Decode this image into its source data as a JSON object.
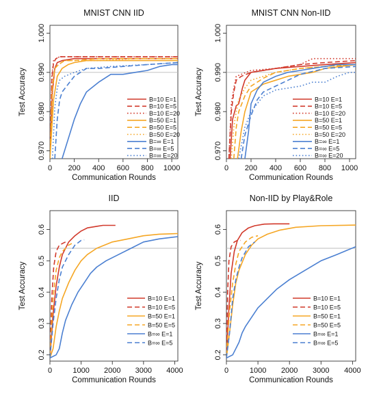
{
  "chart_data": [
    {
      "type": "line",
      "title": "MNIST CNN IID",
      "xlabel": "Communication Rounds",
      "ylabel": "Test Accuracy",
      "xlim": [
        0,
        1050
      ],
      "ylim": [
        0.968,
        1.002
      ],
      "xticks": [
        0,
        200,
        400,
        600,
        800,
        1000
      ],
      "yticks": [
        0.97,
        0.98,
        0.99,
        1.0
      ],
      "ytick_labels": [
        "0.970",
        "0.980",
        "0.990",
        "1.000"
      ],
      "reference_line": 0.99,
      "legend_position": "bottom-right",
      "series": [
        {
          "name": "B=10  E=1",
          "color": "#d1382a",
          "dash": "solid",
          "x": [
            0,
            20,
            40,
            60,
            100,
            200,
            400,
            600,
            800,
            1050
          ],
          "y": [
            0.968,
            0.985,
            0.991,
            0.9925,
            0.993,
            0.9935,
            0.9935,
            0.9935,
            0.9935,
            0.9935
          ]
        },
        {
          "name": "B=10  E=5",
          "color": "#d1382a",
          "dash": "long",
          "x": [
            0,
            15,
            30,
            50,
            80,
            150,
            300,
            600,
            1050
          ],
          "y": [
            0.968,
            0.988,
            0.9925,
            0.9935,
            0.994,
            0.994,
            0.994,
            0.994,
            0.994
          ]
        },
        {
          "name": "B=10  E=20",
          "color": "#d1382a",
          "dash": "dot",
          "x": [
            0,
            15,
            30,
            50,
            80,
            150,
            300,
            600,
            1050
          ],
          "y": [
            0.968,
            0.989,
            0.993,
            0.9935,
            0.994,
            0.994,
            0.994,
            0.994,
            0.994
          ]
        },
        {
          "name": "B=50  E=1",
          "color": "#f5a623",
          "dash": "solid",
          "x": [
            0,
            30,
            60,
            100,
            150,
            200,
            300,
            500,
            800,
            1050
          ],
          "y": [
            0.968,
            0.983,
            0.989,
            0.991,
            0.992,
            0.9925,
            0.993,
            0.993,
            0.993,
            0.993
          ]
        },
        {
          "name": "B=50  E=5",
          "color": "#f5a623",
          "dash": "long",
          "x": [
            0,
            20,
            40,
            70,
            120,
            200,
            400,
            700,
            1050
          ],
          "y": [
            0.968,
            0.986,
            0.991,
            0.992,
            0.993,
            0.993,
            0.9935,
            0.9935,
            0.9935
          ]
        },
        {
          "name": "B=50  E=20",
          "color": "#f5a623",
          "dash": "dot",
          "x": [
            0,
            20,
            40,
            70,
            120,
            200,
            400,
            700,
            1050
          ],
          "y": [
            0.968,
            0.987,
            0.991,
            0.992,
            0.993,
            0.993,
            0.993,
            0.9935,
            0.9935
          ]
        },
        {
          "name": "B=∞  E=1",
          "color": "#4a7fd1",
          "dash": "solid",
          "x": [
            100,
            150,
            200,
            250,
            300,
            400,
            500,
            600,
            700,
            800,
            900,
            1000,
            1050
          ],
          "y": [
            0.968,
            0.973,
            0.978,
            0.982,
            0.985,
            0.9875,
            0.9895,
            0.9895,
            0.99,
            0.9905,
            0.9915,
            0.992,
            0.992
          ]
        },
        {
          "name": "B=∞  E=5",
          "color": "#4a7fd1",
          "dash": "long",
          "x": [
            40,
            60,
            80,
            100,
            150,
            200,
            300,
            400,
            600,
            800,
            1050
          ],
          "y": [
            0.968,
            0.978,
            0.983,
            0.985,
            0.987,
            0.989,
            0.991,
            0.991,
            0.9915,
            0.992,
            0.9925
          ]
        },
        {
          "name": "B=∞  E=20",
          "color": "#4a7fd1",
          "dash": "dot",
          "x": [
            20,
            40,
            60,
            80,
            120,
            200,
            300,
            500,
            800,
            1050
          ],
          "y": [
            0.968,
            0.981,
            0.986,
            0.988,
            0.989,
            0.99,
            0.991,
            0.9915,
            0.992,
            0.9925
          ]
        }
      ]
    },
    {
      "type": "line",
      "title": "MNIST CNN Non-IID",
      "xlabel": "Communication Rounds",
      "ylabel": "Test Accuracy",
      "xlim": [
        0,
        1050
      ],
      "ylim": [
        0.968,
        1.002
      ],
      "xticks": [
        0,
        200,
        400,
        600,
        800,
        1000
      ],
      "yticks": [
        0.97,
        0.98,
        0.99,
        1.0
      ],
      "ytick_labels": [
        "0.970",
        "0.980",
        "0.990",
        "1.000"
      ],
      "reference_line": 0.99,
      "legend_position": "bottom-right",
      "series": [
        {
          "name": "B=10  E=1",
          "color": "#d1382a",
          "dash": "solid",
          "x": [
            30,
            50,
            80,
            100,
            130,
            150,
            200,
            400,
            600,
            800,
            1050
          ],
          "y": [
            0.968,
            0.978,
            0.9815,
            0.982,
            0.986,
            0.988,
            0.99,
            0.991,
            0.9915,
            0.992,
            0.9925
          ]
        },
        {
          "name": "B=10  E=5",
          "color": "#d1382a",
          "dash": "long",
          "x": [
            20,
            40,
            60,
            80,
            120,
            200,
            400,
            600,
            800,
            1050
          ],
          "y": [
            0.968,
            0.98,
            0.985,
            0.988,
            0.989,
            0.99,
            0.991,
            0.992,
            0.9925,
            0.993
          ]
        },
        {
          "name": "B=10  E=20",
          "color": "#d1382a",
          "dash": "dot",
          "x": [
            20,
            40,
            60,
            80,
            120,
            200,
            400,
            600,
            700,
            800,
            1050
          ],
          "y": [
            0.968,
            0.982,
            0.986,
            0.989,
            0.9895,
            0.9905,
            0.991,
            0.992,
            0.9935,
            0.9935,
            0.9935
          ]
        },
        {
          "name": "B=50  E=1",
          "color": "#f5a623",
          "dash": "solid",
          "x": [
            90,
            120,
            150,
            200,
            300,
            400,
            500,
            600,
            700,
            800,
            1050
          ],
          "y": [
            0.968,
            0.975,
            0.98,
            0.985,
            0.987,
            0.988,
            0.989,
            0.9895,
            0.99,
            0.991,
            0.992
          ]
        },
        {
          "name": "B=50  E=5",
          "color": "#f5a623",
          "dash": "long",
          "x": [
            60,
            80,
            100,
            150,
            200,
            300,
            400,
            600,
            800,
            1050
          ],
          "y": [
            0.968,
            0.976,
            0.98,
            0.984,
            0.9865,
            0.9885,
            0.99,
            0.991,
            0.9915,
            0.992
          ]
        },
        {
          "name": "B=50  E=20",
          "color": "#f5a623",
          "dash": "dot",
          "x": [
            40,
            60,
            80,
            100,
            150,
            200,
            300,
            400,
            600,
            800,
            1050
          ],
          "y": [
            0.968,
            0.976,
            0.98,
            0.983,
            0.986,
            0.988,
            0.989,
            0.99,
            0.991,
            0.9915,
            0.992
          ]
        },
        {
          "name": "B=∞  E=1",
          "color": "#4a7fd1",
          "dash": "solid",
          "x": [
            150,
            180,
            200,
            250,
            300,
            400,
            500,
            600,
            700,
            800,
            900,
            1050
          ],
          "y": [
            0.968,
            0.975,
            0.982,
            0.9855,
            0.9875,
            0.989,
            0.99,
            0.9905,
            0.991,
            0.9915,
            0.992,
            0.992
          ]
        },
        {
          "name": "B=∞  E=5",
          "color": "#4a7fd1",
          "dash": "long",
          "x": [
            120,
            150,
            200,
            250,
            300,
            400,
            500,
            600,
            800,
            1050
          ],
          "y": [
            0.968,
            0.974,
            0.979,
            0.983,
            0.985,
            0.9865,
            0.988,
            0.9895,
            0.991,
            0.9915
          ]
        },
        {
          "name": "B=∞  E=20",
          "color": "#4a7fd1",
          "dash": "dot",
          "x": [
            100,
            150,
            200,
            300,
            400,
            500,
            600,
            700,
            800,
            900,
            1000,
            1050
          ],
          "y": [
            0.968,
            0.976,
            0.98,
            0.984,
            0.9855,
            0.986,
            0.9865,
            0.9875,
            0.9875,
            0.989,
            0.99,
            0.99
          ]
        }
      ]
    },
    {
      "type": "line",
      "title": "IID",
      "xlabel": "Communication Rounds",
      "ylabel": "Test Accuracy",
      "xlim": [
        0,
        4100
      ],
      "ylim": [
        0.18,
        0.66
      ],
      "xticks": [
        0,
        1000,
        2000,
        3000,
        4000
      ],
      "yticks": [
        0.2,
        0.3,
        0.4,
        0.5,
        0.6
      ],
      "ytick_labels": [
        "0.2",
        "0.3",
        "0.4",
        "0.5",
        "0.6"
      ],
      "reference_line": 0.54,
      "legend_position": "bottom-right",
      "series": [
        {
          "name": "B=10  E=1",
          "color": "#d1382a",
          "dash": "solid",
          "x": [
            0,
            100,
            200,
            300,
            400,
            600,
            800,
            1000,
            1200,
            1500,
            1700,
            2100
          ],
          "y": [
            0.19,
            0.33,
            0.42,
            0.48,
            0.52,
            0.56,
            0.58,
            0.595,
            0.605,
            0.61,
            0.613,
            0.613
          ]
        },
        {
          "name": "B=10  E=5",
          "color": "#d1382a",
          "dash": "long",
          "x": [
            0,
            60,
            120,
            200,
            300,
            400,
            500
          ],
          "y": [
            0.2,
            0.38,
            0.48,
            0.53,
            0.55,
            0.555,
            0.56
          ]
        },
        {
          "name": "B=50  E=1",
          "color": "#f5a623",
          "dash": "solid",
          "x": [
            0,
            100,
            200,
            300,
            400,
            600,
            800,
            1000,
            1200,
            1500,
            2000,
            2500,
            3000,
            3500,
            4100
          ],
          "y": [
            0.19,
            0.22,
            0.29,
            0.34,
            0.38,
            0.43,
            0.47,
            0.5,
            0.52,
            0.54,
            0.56,
            0.57,
            0.58,
            0.585,
            0.587
          ]
        },
        {
          "name": "B=50  E=5",
          "color": "#f5a623",
          "dash": "long",
          "x": [
            0,
            100,
            200,
            300,
            400,
            600,
            700
          ],
          "y": [
            0.2,
            0.38,
            0.47,
            0.51,
            0.53,
            0.55,
            0.555
          ]
        },
        {
          "name": "B=∞  E=1",
          "color": "#4a7fd1",
          "dash": "solid",
          "x": [
            0,
            200,
            300,
            400,
            500,
            700,
            900,
            1100,
            1300,
            1500,
            1800,
            2200,
            2600,
            3000,
            3500,
            4100
          ],
          "y": [
            0.19,
            0.2,
            0.22,
            0.27,
            0.31,
            0.36,
            0.4,
            0.43,
            0.46,
            0.48,
            0.5,
            0.52,
            0.54,
            0.56,
            0.57,
            0.577
          ]
        },
        {
          "name": "B=∞  E=5",
          "color": "#4a7fd1",
          "dash": "long",
          "x": [
            0,
            100,
            200,
            300,
            400,
            600,
            800,
            1000,
            1100
          ],
          "y": [
            0.19,
            0.3,
            0.38,
            0.44,
            0.48,
            0.52,
            0.55,
            0.565,
            0.567
          ]
        }
      ]
    },
    {
      "type": "line",
      "title": "Non-IID by Play&Role",
      "xlabel": "Communication Rounds",
      "ylabel": "Test Accuracy",
      "xlim": [
        0,
        4100
      ],
      "ylim": [
        0.18,
        0.66
      ],
      "xticks": [
        0,
        1000,
        2000,
        3000,
        4000
      ],
      "yticks": [
        0.2,
        0.3,
        0.4,
        0.5,
        0.6
      ],
      "ytick_labels": [
        "0.2",
        "0.3",
        "0.4",
        "0.5",
        "0.6"
      ],
      "reference_line": 0.54,
      "legend_position": "bottom-right",
      "series": [
        {
          "name": "B=10  E=1",
          "color": "#d1382a",
          "dash": "solid",
          "x": [
            0,
            80,
            150,
            250,
            350,
            500,
            700,
            900,
            1200,
            1500,
            2000
          ],
          "y": [
            0.19,
            0.35,
            0.46,
            0.53,
            0.565,
            0.59,
            0.605,
            0.612,
            0.617,
            0.618,
            0.618
          ]
        },
        {
          "name": "B=10  E=5",
          "color": "#d1382a",
          "dash": "long",
          "x": [
            0,
            40,
            80,
            150,
            250,
            350,
            450
          ],
          "y": [
            0.2,
            0.4,
            0.5,
            0.545,
            0.56,
            0.565,
            0.565
          ]
        },
        {
          "name": "B=50  E=1",
          "color": "#f5a623",
          "dash": "solid",
          "x": [
            0,
            100,
            200,
            300,
            400,
            600,
            800,
            1000,
            1300,
            1700,
            2200,
            3000,
            4100
          ],
          "y": [
            0.19,
            0.27,
            0.36,
            0.43,
            0.47,
            0.52,
            0.55,
            0.57,
            0.585,
            0.598,
            0.607,
            0.612,
            0.614
          ]
        },
        {
          "name": "B=50  E=5",
          "color": "#f5a623",
          "dash": "long",
          "x": [
            0,
            100,
            200,
            300,
            400,
            600,
            800,
            1000
          ],
          "y": [
            0.2,
            0.34,
            0.43,
            0.49,
            0.53,
            0.56,
            0.575,
            0.58
          ]
        },
        {
          "name": "B=∞  E=1",
          "color": "#4a7fd1",
          "dash": "solid",
          "x": [
            0,
            200,
            300,
            400,
            500,
            600,
            800,
            1000,
            1300,
            1600,
            2000,
            2500,
            3000,
            3500,
            4100
          ],
          "y": [
            0.19,
            0.2,
            0.22,
            0.24,
            0.27,
            0.29,
            0.32,
            0.35,
            0.38,
            0.41,
            0.44,
            0.47,
            0.5,
            0.52,
            0.545
          ]
        },
        {
          "name": "B=∞  E=5",
          "color": "#4a7fd1",
          "dash": "long",
          "x": [
            0,
            100,
            200,
            300,
            400,
            500,
            700,
            900
          ],
          "y": [
            0.19,
            0.27,
            0.38,
            0.44,
            0.48,
            0.51,
            0.545,
            0.56
          ]
        }
      ]
    }
  ]
}
